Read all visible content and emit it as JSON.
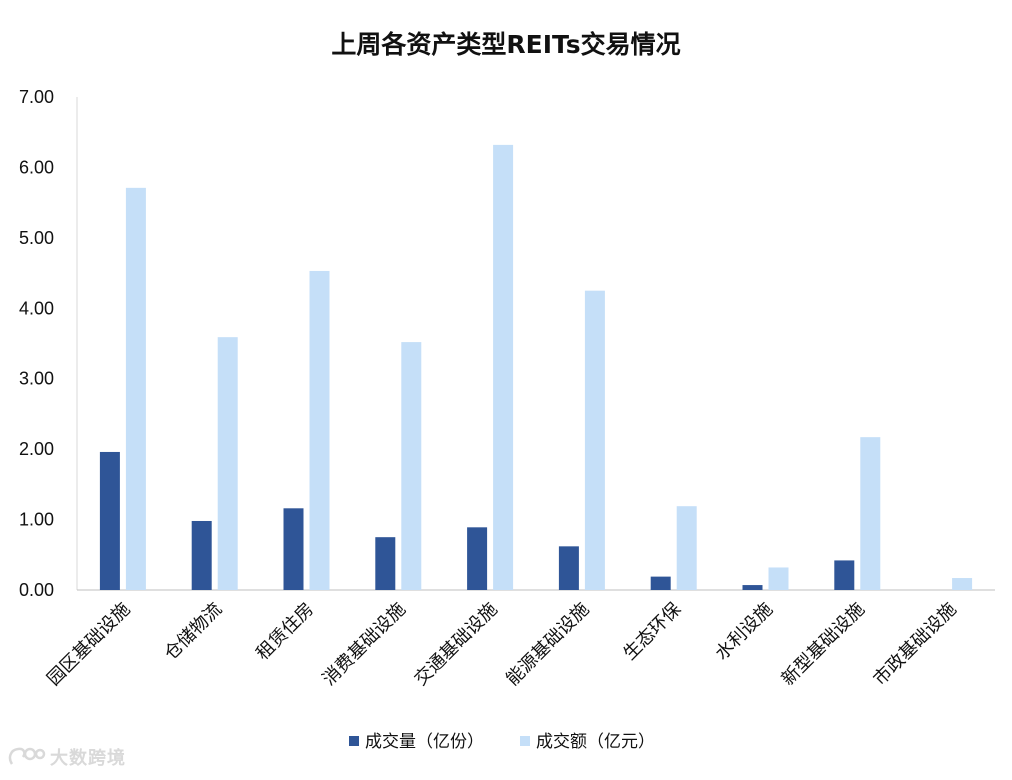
{
  "chart_data": {
    "type": "bar",
    "title": "上周各资产类型REITs交易情况",
    "categories": [
      "园区基础设施",
      "仓储物流",
      "租赁住房",
      "消费基础设施",
      "交通基础设施",
      "能源基础设施",
      "生态环保",
      "水利设施",
      "新型基础设施",
      "市政基础设施"
    ],
    "series": [
      {
        "name": "成交量（亿份）",
        "color": "#2f5597",
        "values": [
          1.96,
          0.98,
          1.16,
          0.75,
          0.89,
          0.62,
          0.19,
          0.07,
          0.42,
          0.0
        ]
      },
      {
        "name": "成交额（亿元）",
        "color": "#c5dff8",
        "values": [
          5.71,
          3.59,
          4.53,
          3.52,
          6.32,
          4.25,
          1.19,
          0.32,
          2.17,
          0.17
        ]
      }
    ],
    "yticks": [
      "0.00",
      "1.00",
      "2.00",
      "3.00",
      "4.00",
      "5.00",
      "6.00",
      "7.00"
    ],
    "ylim": [
      0,
      7
    ],
    "xlabel": "",
    "ylabel": "",
    "grid": false,
    "legend_position": "bottom"
  },
  "watermark": {
    "text": "大数跨境",
    "logo_icon": "dsj-logo-icon"
  }
}
